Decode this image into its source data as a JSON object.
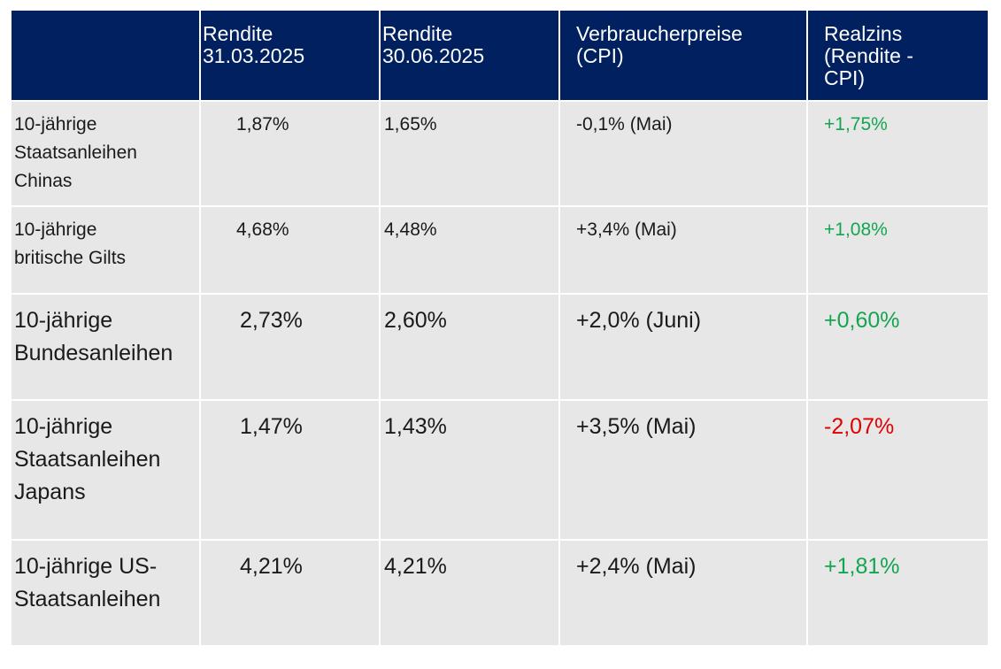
{
  "table": {
    "headers": [
      "",
      "Rendite\n31.03.2025",
      "Rendite\n30.06.2025",
      "Verbraucherpreise\n(CPI)",
      "Realzins\n(Rendite -\nCPI)"
    ],
    "header_lines": {
      "col1": [
        "Rendite",
        "31.03.2025"
      ],
      "col2": [
        "Rendite",
        "30.06.2025"
      ],
      "col3": [
        "Verbraucherpreise",
        "(CPI)"
      ],
      "col4": [
        "Realzins",
        "(Rendite -",
        "CPI)"
      ]
    },
    "rows": [
      {
        "bond_lines": [
          "10-jährige",
          "Staatsanleihen",
          "Chinas"
        ],
        "yield_q1": "1,87%",
        "yield_q2": "1,65%",
        "cpi": "-0,1% (Mai)",
        "real_rate": "+1,75%",
        "real_rate_status": "positive"
      },
      {
        "bond_lines": [
          "10-jährige",
          "britische Gilts"
        ],
        "yield_q1": "4,68%",
        "yield_q2": "4,48%",
        "cpi": "+3,4% (Mai)",
        "real_rate": "+1,08%",
        "real_rate_status": "positive"
      },
      {
        "bond_lines": [
          "10-jährige",
          "Bundesanleihen"
        ],
        "yield_q1": "2,73%",
        "yield_q2": "2,60%",
        "cpi": "+2,0% (Juni)",
        "real_rate": "+0,60%",
        "real_rate_status": "positive"
      },
      {
        "bond_lines": [
          "10-jährige",
          "Staatsanleihen",
          "Japans"
        ],
        "yield_q1": "1,47%",
        "yield_q2": "1,43%",
        "cpi": "+3,5% (Mai)",
        "real_rate": "-2,07%",
        "real_rate_status": "negative"
      },
      {
        "bond_lines": [
          "10-jährige US-",
          "Staatsanleihen"
        ],
        "yield_q1": "4,21%",
        "yield_q2": "4,21%",
        "cpi": "+2,4% (Mai)",
        "real_rate": "+1,81%",
        "real_rate_status": "positive"
      }
    ]
  },
  "colors": {
    "header_bg": "#002060",
    "row_bg": "#e7e7e7",
    "positive": "#14a550",
    "negative": "#e00000"
  }
}
